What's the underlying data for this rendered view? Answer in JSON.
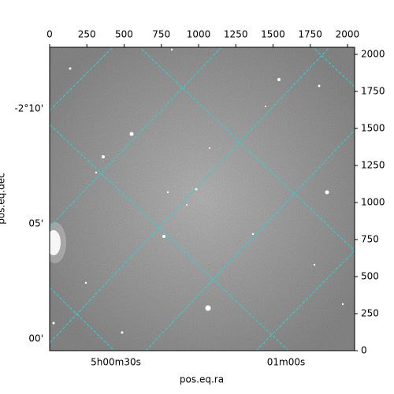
{
  "chart_data": {
    "type": "image",
    "x_label": "pos.eq.ra",
    "y_label": "pos.eq.dec",
    "xlim": [
      0,
      2048
    ],
    "ylim": [
      0,
      2048
    ],
    "xticks": [
      0,
      250,
      500,
      750,
      1000,
      1250,
      1500,
      1750,
      2000
    ],
    "yticks": [
      0,
      250,
      500,
      750,
      1000,
      1250,
      1500,
      1750,
      2000
    ],
    "ra_ticks": [
      "5h00m30s",
      "01m00s"
    ],
    "dec_ticks": [
      "-2°10'",
      "05'",
      "00'"
    ],
    "grid_color": "#22d8d8"
  }
}
